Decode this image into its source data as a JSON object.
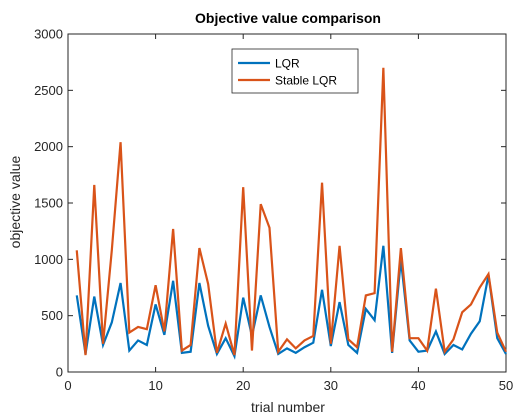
{
  "chart_data": {
    "type": "line",
    "title": "Objective value comparison",
    "xlabel": "trial number",
    "ylabel": "objective value",
    "xlim": [
      0,
      50
    ],
    "ylim": [
      0,
      3000
    ],
    "xticks": [
      "0",
      "10",
      "20",
      "30",
      "40",
      "50"
    ],
    "yticks": [
      "0",
      "500",
      "1000",
      "1500",
      "2000",
      "2500",
      "3000"
    ],
    "grid": false,
    "legend_position": "top-center",
    "x": [
      1,
      2,
      3,
      4,
      5,
      6,
      7,
      8,
      9,
      10,
      11,
      12,
      13,
      14,
      15,
      16,
      17,
      18,
      19,
      20,
      21,
      22,
      23,
      24,
      25,
      26,
      27,
      28,
      29,
      30,
      31,
      32,
      33,
      34,
      35,
      36,
      37,
      38,
      39,
      40,
      41,
      42,
      43,
      44,
      45,
      46,
      47,
      48,
      49,
      50
    ],
    "series": [
      {
        "name": "LQR",
        "color": "#0072BD",
        "values": [
          680,
          160,
          670,
          240,
          440,
          790,
          190,
          280,
          240,
          600,
          330,
          810,
          170,
          180,
          790,
          410,
          160,
          300,
          140,
          660,
          320,
          680,
          400,
          160,
          210,
          170,
          220,
          260,
          730,
          230,
          620,
          240,
          170,
          560,
          460,
          1120,
          170,
          1000,
          280,
          180,
          190,
          360,
          160,
          240,
          200,
          340,
          450,
          860,
          300,
          160
        ]
      },
      {
        "name": "Stable LQR",
        "color": "#D95319",
        "values": [
          1080,
          150,
          1660,
          250,
          1080,
          2040,
          350,
          400,
          380,
          770,
          360,
          1270,
          190,
          240,
          1100,
          780,
          170,
          430,
          150,
          1640,
          190,
          1490,
          1280,
          180,
          290,
          210,
          280,
          320,
          1680,
          250,
          1120,
          290,
          220,
          680,
          700,
          2700,
          180,
          1100,
          300,
          300,
          190,
          740,
          180,
          290,
          530,
          600,
          750,
          870,
          350,
          180
        ]
      }
    ]
  }
}
